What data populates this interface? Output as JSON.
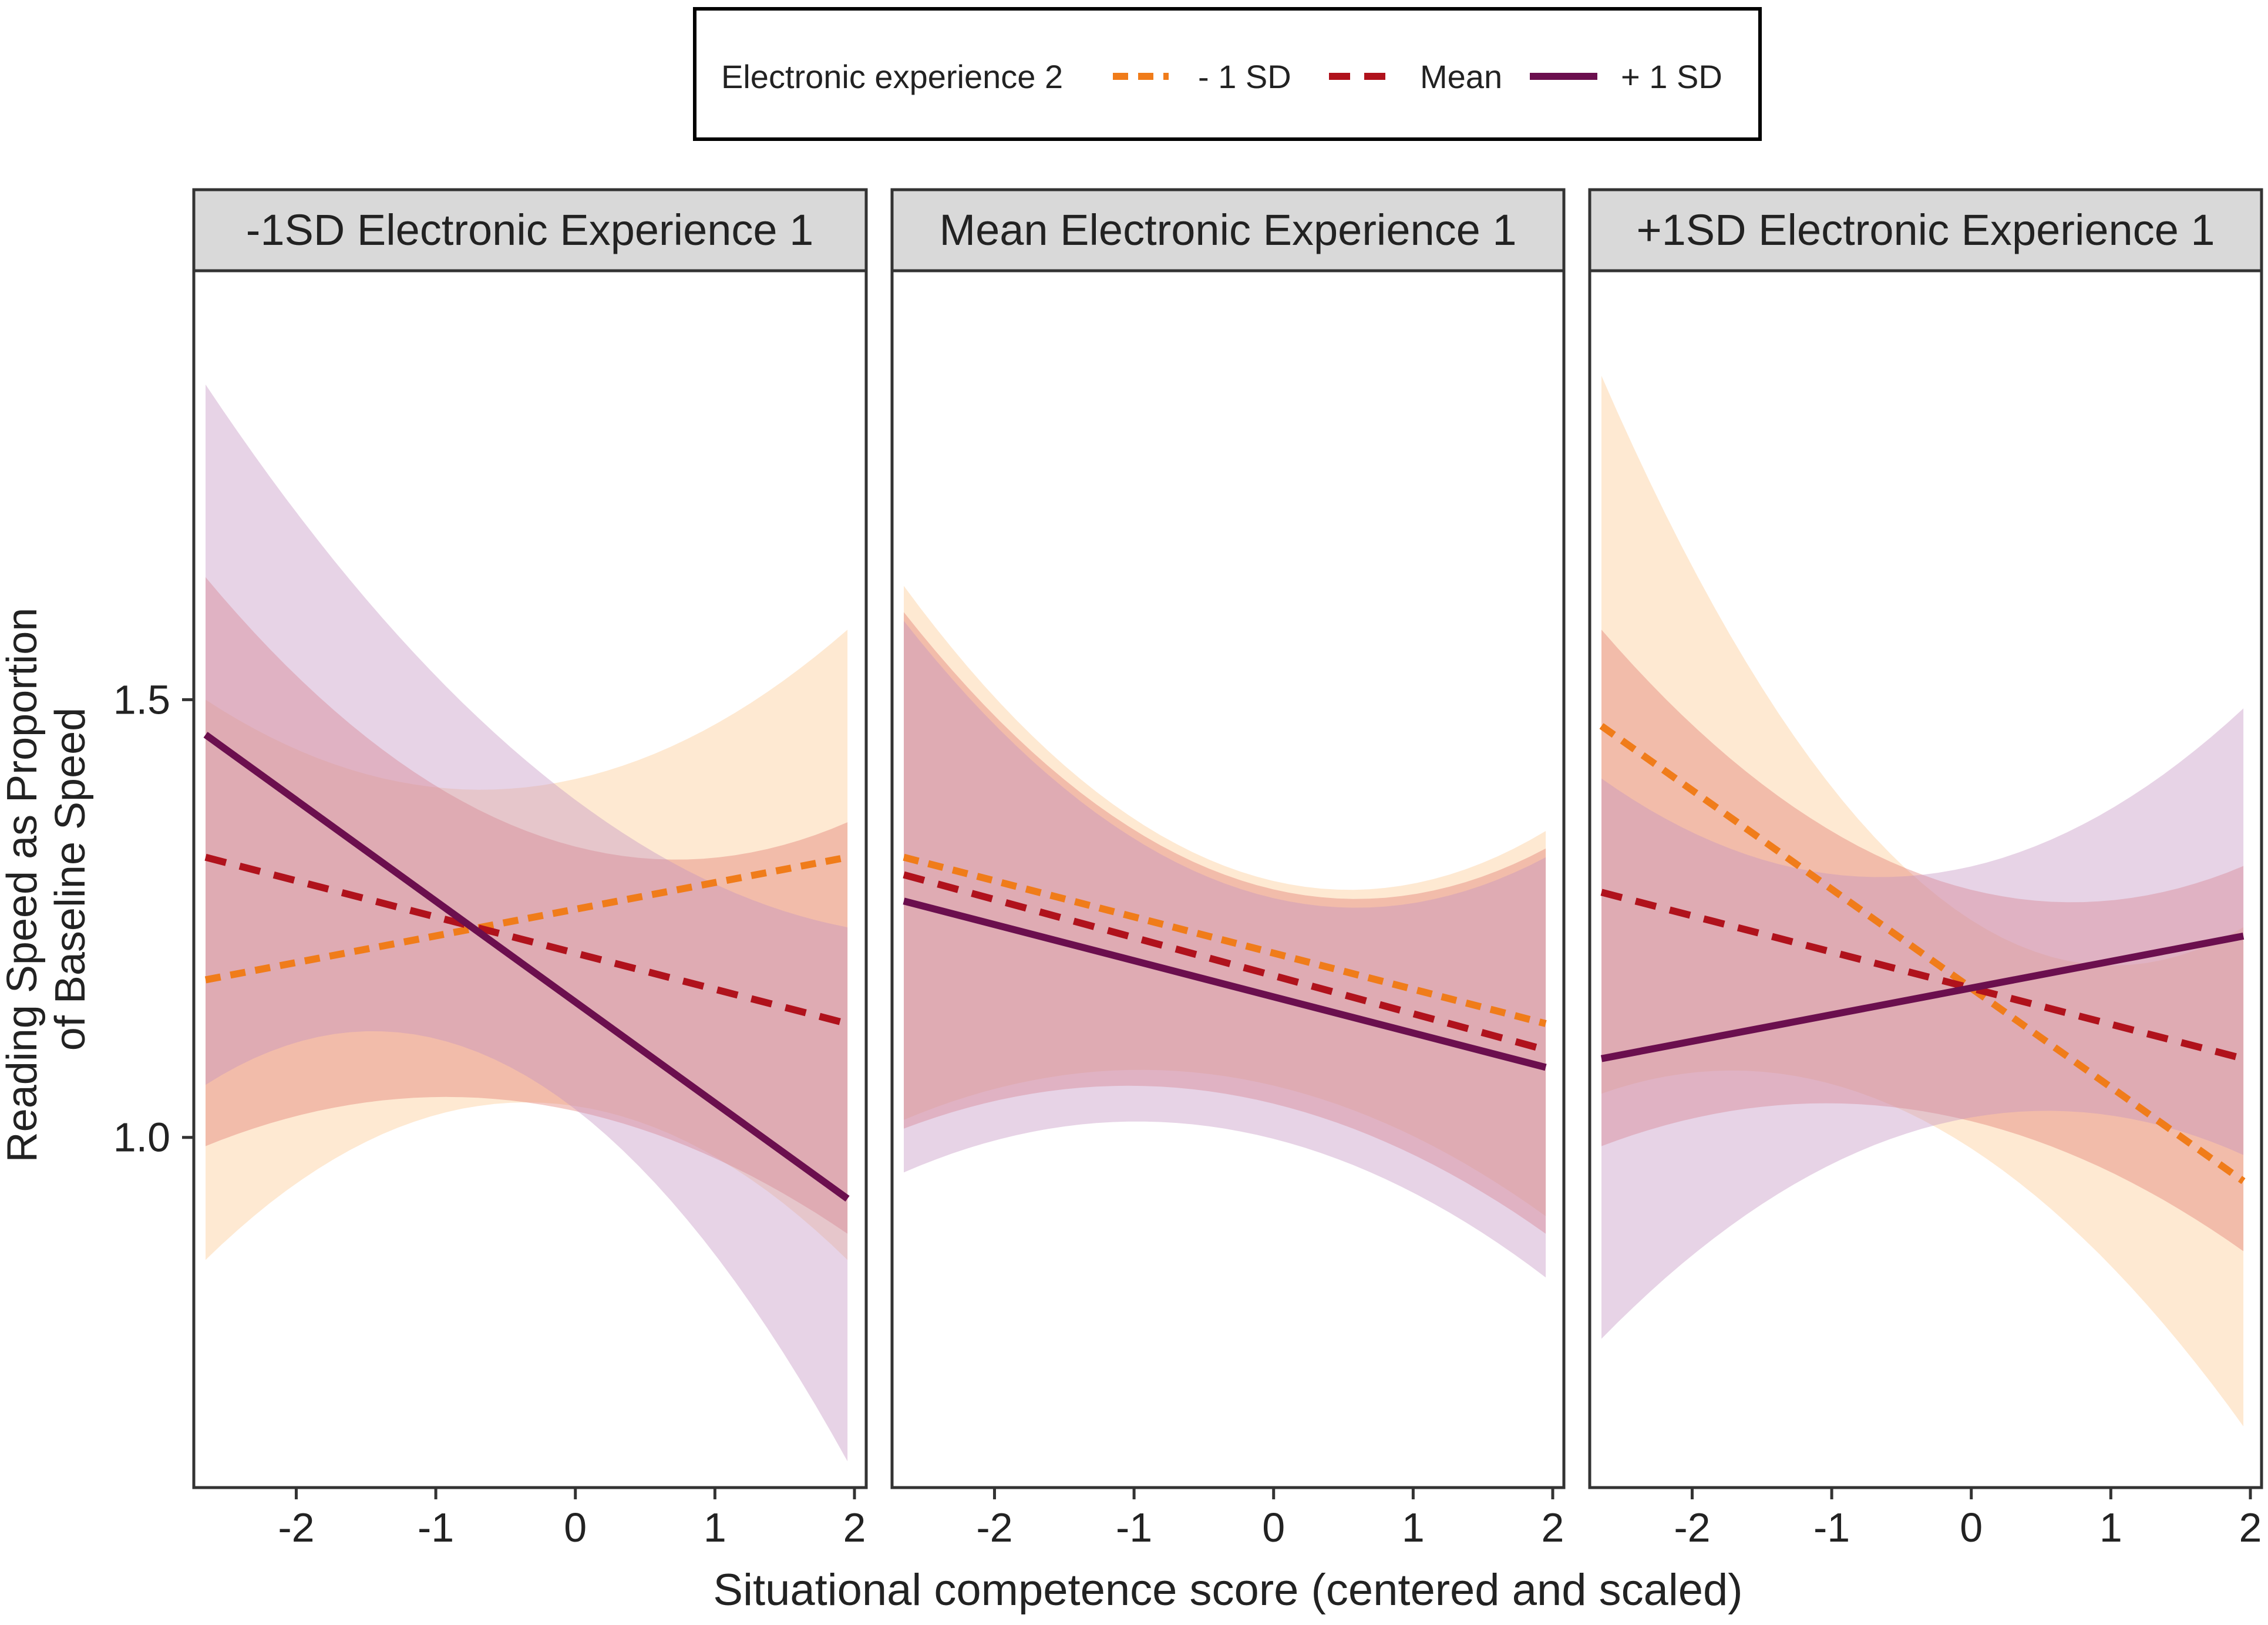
{
  "chart_data": {
    "type": "line",
    "xlabel": "Situational competence score (centered and scaled)",
    "ylabel": [
      "Reading Speed as Proportion",
      "of Baseline Speed"
    ],
    "xlim": [
      -2.65,
      2.0
    ],
    "ylim": [
      0.6,
      1.99
    ],
    "x_ticks": [
      -2,
      -1,
      0,
      1,
      2
    ],
    "x_tick_labels": [
      "-2",
      "-1",
      "0",
      "1",
      "2"
    ],
    "y_ticks": [
      1.0,
      1.5
    ],
    "y_tick_labels": [
      "1.0",
      "1.5"
    ],
    "legend": {
      "title": "Electronic experience 2",
      "position": "top-center",
      "items": [
        {
          "key": "minus",
          "label": "- 1 SD",
          "color": "#f07c1a",
          "dash": "dotted"
        },
        {
          "key": "mean",
          "label": "Mean",
          "color": "#b0121c",
          "dash": "dashed"
        },
        {
          "key": "plus",
          "label": "+ 1 SD",
          "color": "#6b0f4e",
          "dash": "solid"
        }
      ]
    },
    "band_colors": {
      "minus": "#fcc98f",
      "mean": "#e0776e",
      "plus": "#c392c0"
    },
    "band_opacity": 0.4,
    "x_range": [
      -2.65,
      1.95
    ],
    "panels": [
      {
        "title": "-1SD Electronic Experience 1",
        "series": [
          {
            "key": "minus",
            "line": [
              1.18,
              1.32
            ],
            "band_lower": [
              0.86,
              1.04,
              0.86
            ],
            "band_upper": [
              1.5,
              1.4,
              1.58
            ]
          },
          {
            "key": "mean",
            "line": [
              1.32,
              1.13
            ],
            "band_lower": [
              0.99,
              1.04,
              0.89
            ],
            "band_upper": [
              1.64,
              1.35,
              1.36
            ]
          },
          {
            "key": "plus",
            "line": [
              1.46,
              0.93
            ],
            "band_lower": [
              1.06,
              1.07,
              0.63
            ],
            "band_upper": [
              1.86,
              1.43,
              1.24
            ]
          }
        ]
      },
      {
        "title": "Mean Electronic Experience 1",
        "series": [
          {
            "key": "minus",
            "line": [
              1.32,
              1.13
            ],
            "band_lower": [
              1.02,
              1.07,
              0.91
            ],
            "band_upper": [
              1.63,
              1.31,
              1.35
            ]
          },
          {
            "key": "mean",
            "line": [
              1.3,
              1.1
            ],
            "band_lower": [
              1.01,
              1.05,
              0.89
            ],
            "band_upper": [
              1.6,
              1.3,
              1.33
            ]
          },
          {
            "key": "plus",
            "line": [
              1.27,
              1.08
            ],
            "band_lower": [
              0.96,
              1.01,
              0.84
            ],
            "band_upper": [
              1.59,
              1.29,
              1.32
            ]
          }
        ]
      },
      {
        "title": "+1SD Electronic Experience 1",
        "series": [
          {
            "key": "minus",
            "line": [
              1.47,
              0.95
            ],
            "band_lower": [
              1.05,
              1.02,
              0.67
            ],
            "band_upper": [
              1.87,
              1.29,
              1.24
            ]
          },
          {
            "key": "mean",
            "line": [
              1.28,
              1.09
            ],
            "band_lower": [
              0.99,
              1.03,
              0.87
            ],
            "band_upper": [
              1.58,
              1.3,
              1.31
            ]
          },
          {
            "key": "plus",
            "line": [
              1.09,
              1.23
            ],
            "band_lower": [
              0.77,
              1.01,
              0.98
            ],
            "band_upper": [
              1.41,
              1.3,
              1.49
            ]
          }
        ]
      }
    ]
  }
}
